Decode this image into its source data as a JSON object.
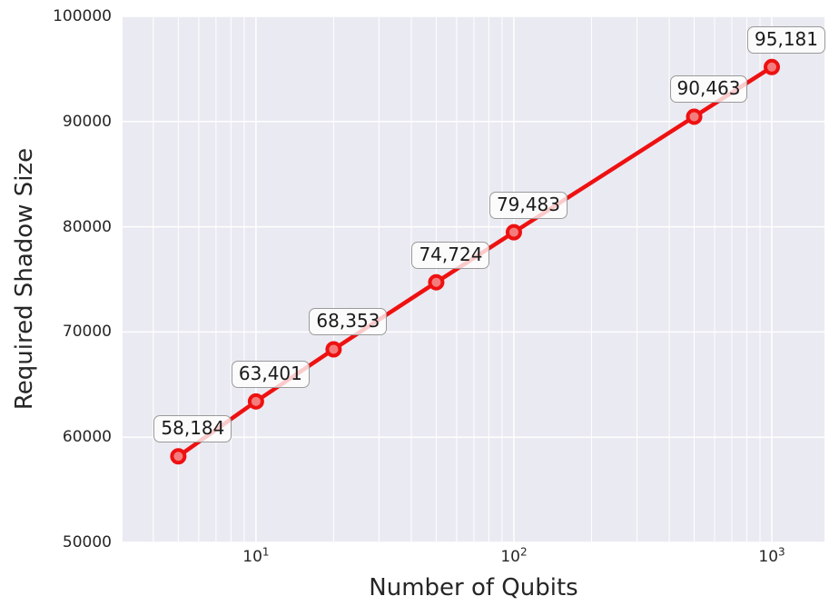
{
  "chart_data": {
    "type": "line",
    "title": "",
    "xlabel": "Number of Qubits",
    "ylabel": "Required Shadow Size",
    "xscale": "log",
    "yscale": "linear",
    "x": [
      5,
      10,
      20,
      50,
      100,
      500,
      1000
    ],
    "y": [
      58184,
      63401,
      68353,
      74724,
      79483,
      90463,
      95181
    ],
    "point_labels": [
      "58,184",
      "63,401",
      "68,353",
      "74,724",
      "79,483",
      "90,463",
      "95,181"
    ],
    "xticks": [
      {
        "base": "10",
        "exp": "1",
        "value": 10
      },
      {
        "base": "10",
        "exp": "2",
        "value": 100
      },
      {
        "base": "10",
        "exp": "3",
        "value": 1000
      }
    ],
    "yticks": [
      {
        "label": "50000",
        "value": 50000
      },
      {
        "label": "60000",
        "value": 60000
      },
      {
        "label": "70000",
        "value": 70000
      },
      {
        "label": "80000",
        "value": 80000
      },
      {
        "label": "90000",
        "value": 90000
      },
      {
        "label": "100000",
        "value": 100000
      }
    ],
    "xlim": [
      3.04,
      1600
    ],
    "ylim": [
      50000,
      100000
    ],
    "grid": true,
    "legend_position": "none",
    "colors": {
      "line": "#ee1111",
      "marker_edge": "#ee1111",
      "marker_face": "#f37d7d",
      "plot_bg": "#eaeaf2",
      "grid_line": "#ffffff",
      "tick_text": "#262626",
      "label_text": "#262626",
      "annotation_bg": "rgba(255,255,255,0.78)",
      "annotation_border": "#9a9a9a"
    }
  }
}
